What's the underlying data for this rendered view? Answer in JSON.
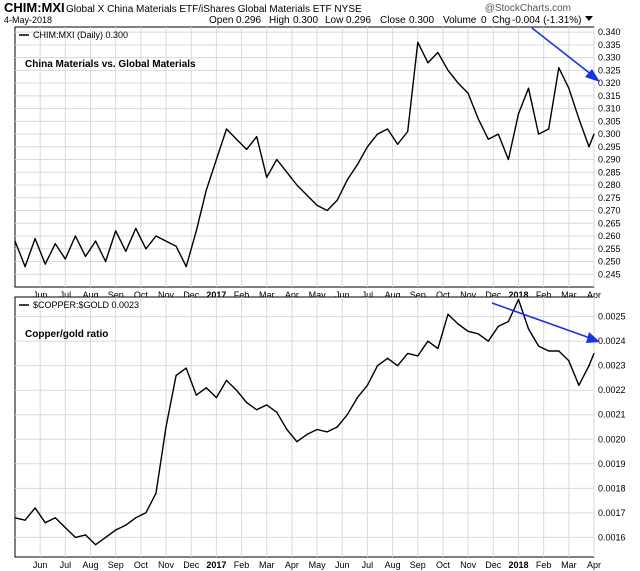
{
  "header": {
    "symbol": "CHIM:MXI",
    "name": "Global X China Materials ETF/iShares Global Materials ETF  NYSE",
    "date": "4-May-2018",
    "open_label": "Open",
    "open": "0.296",
    "high_label": "High",
    "high": "0.300",
    "low_label": "Low",
    "low": "0.296",
    "close_label": "Close",
    "close": "0.300",
    "volume_label": "Volume",
    "volume": "0",
    "chg_label": "Chg",
    "chg": "-0.004 (-1.31%)",
    "brand": "@StockCharts.com"
  },
  "colors": {
    "line": "#000000",
    "arrow": "#1a33e6",
    "grid": "#d9d9d9"
  },
  "chart_data": [
    {
      "type": "line",
      "legend": "CHIM:MXI (Daily) 0.300",
      "annotation": "China Materials vs. Global Materials",
      "ylim": [
        0.24,
        0.342
      ],
      "yticks": [
        0.245,
        0.25,
        0.255,
        0.26,
        0.265,
        0.27,
        0.275,
        0.28,
        0.285,
        0.29,
        0.295,
        0.3,
        0.305,
        0.31,
        0.315,
        0.32,
        0.325,
        0.33,
        0.335,
        0.34
      ],
      "ytick_labels": [
        "0.245",
        "0.250",
        "0.255",
        "0.260",
        "0.265",
        "0.270",
        "0.275",
        "0.280",
        "0.285",
        "0.290",
        "0.295",
        "0.300",
        "0.305",
        "0.310",
        "0.315",
        "0.320",
        "0.325",
        "0.330",
        "0.335",
        "0.340"
      ],
      "xlim": [
        0,
        23
      ],
      "x_ticks": [
        {
          "x": 1.0,
          "label": "Jun"
        },
        {
          "x": 2.0,
          "label": "Jul"
        },
        {
          "x": 3.0,
          "label": "Aug"
        },
        {
          "x": 4.0,
          "label": "Sep"
        },
        {
          "x": 5.0,
          "label": "Oct"
        },
        {
          "x": 6.0,
          "label": "Nov"
        },
        {
          "x": 7.0,
          "label": "Dec"
        },
        {
          "x": 8.0,
          "label": "2017"
        },
        {
          "x": 9.0,
          "label": "Feb"
        },
        {
          "x": 10.0,
          "label": "Mar"
        },
        {
          "x": 11.0,
          "label": "Apr"
        },
        {
          "x": 12.0,
          "label": "May"
        },
        {
          "x": 13.0,
          "label": "Jun"
        },
        {
          "x": 14.0,
          "label": "Jul"
        },
        {
          "x": 15.0,
          "label": "Aug"
        },
        {
          "x": 16.0,
          "label": "Sep"
        },
        {
          "x": 17.0,
          "label": "Oct"
        },
        {
          "x": 18.0,
          "label": "Nov"
        },
        {
          "x": 19.0,
          "label": "Dec"
        },
        {
          "x": 20.0,
          "label": "2018"
        },
        {
          "x": 21.0,
          "label": "Feb"
        },
        {
          "x": 22.0,
          "label": "Mar"
        },
        {
          "x": 23.0,
          "label": "Apr"
        }
      ],
      "x": [
        0,
        0.4,
        0.8,
        1.2,
        1.6,
        2.0,
        2.4,
        2.8,
        3.2,
        3.6,
        4.0,
        4.4,
        4.8,
        5.2,
        5.6,
        6.0,
        6.4,
        6.8,
        7.2,
        7.6,
        8.0,
        8.4,
        8.8,
        9.2,
        9.6,
        10.0,
        10.4,
        10.8,
        11.2,
        11.6,
        12.0,
        12.4,
        12.8,
        13.2,
        13.6,
        14.0,
        14.4,
        14.8,
        15.2,
        15.6,
        16.0,
        16.4,
        16.8,
        17.2,
        17.6,
        18.0,
        18.4,
        18.8,
        19.2,
        19.6,
        20.0,
        20.4,
        20.8,
        21.2,
        21.6,
        22.0,
        22.4,
        22.8,
        23.0
      ],
      "y": [
        0.258,
        0.248,
        0.259,
        0.249,
        0.257,
        0.251,
        0.26,
        0.252,
        0.258,
        0.25,
        0.262,
        0.254,
        0.263,
        0.255,
        0.26,
        0.258,
        0.256,
        0.248,
        0.262,
        0.278,
        0.29,
        0.302,
        0.298,
        0.294,
        0.299,
        0.283,
        0.29,
        0.285,
        0.28,
        0.276,
        0.272,
        0.27,
        0.274,
        0.282,
        0.288,
        0.295,
        0.3,
        0.302,
        0.296,
        0.301,
        0.336,
        0.328,
        0.332,
        0.325,
        0.32,
        0.316,
        0.306,
        0.298,
        0.3,
        0.29,
        0.308,
        0.318,
        0.3,
        0.302,
        0.326,
        0.318,
        0.306,
        0.295,
        0.3
      ]
    },
    {
      "type": "line",
      "legend": "$COPPER:$GOLD 0.0023",
      "annotation": "Copper/gold ratio",
      "ylim": [
        0.00152,
        0.00258
      ],
      "yticks": [
        0.0016,
        0.0017,
        0.0018,
        0.0019,
        0.002,
        0.0021,
        0.0022,
        0.0023,
        0.0024,
        0.0025
      ],
      "ytick_labels": [
        "0.0016",
        "0.0017",
        "0.0018",
        "0.0019",
        "0.0020",
        "0.0021",
        "0.0022",
        "0.0023",
        "0.0024",
        "0.0025"
      ],
      "xlim": [
        0,
        23
      ],
      "x_ticks": [
        {
          "x": 1.0,
          "label": "Jun"
        },
        {
          "x": 2.0,
          "label": "Jul"
        },
        {
          "x": 3.0,
          "label": "Aug"
        },
        {
          "x": 4.0,
          "label": "Sep"
        },
        {
          "x": 5.0,
          "label": "Oct"
        },
        {
          "x": 6.0,
          "label": "Nov"
        },
        {
          "x": 7.0,
          "label": "Dec"
        },
        {
          "x": 8.0,
          "label": "2017"
        },
        {
          "x": 9.0,
          "label": "Feb"
        },
        {
          "x": 10.0,
          "label": "Mar"
        },
        {
          "x": 11.0,
          "label": "Apr"
        },
        {
          "x": 12.0,
          "label": "May"
        },
        {
          "x": 13.0,
          "label": "Jun"
        },
        {
          "x": 14.0,
          "label": "Jul"
        },
        {
          "x": 15.0,
          "label": "Aug"
        },
        {
          "x": 16.0,
          "label": "Sep"
        },
        {
          "x": 17.0,
          "label": "Oct"
        },
        {
          "x": 18.0,
          "label": "Nov"
        },
        {
          "x": 19.0,
          "label": "Dec"
        },
        {
          "x": 20.0,
          "label": "2018"
        },
        {
          "x": 21.0,
          "label": "Feb"
        },
        {
          "x": 22.0,
          "label": "Mar"
        },
        {
          "x": 23.0,
          "label": "Apr"
        }
      ],
      "x": [
        0,
        0.4,
        0.8,
        1.2,
        1.6,
        2.0,
        2.4,
        2.8,
        3.2,
        3.6,
        4.0,
        4.4,
        4.8,
        5.2,
        5.6,
        6.0,
        6.4,
        6.8,
        7.2,
        7.6,
        8.0,
        8.4,
        8.8,
        9.2,
        9.6,
        10.0,
        10.4,
        10.8,
        11.2,
        11.6,
        12.0,
        12.4,
        12.8,
        13.2,
        13.6,
        14.0,
        14.4,
        14.8,
        15.2,
        15.6,
        16.0,
        16.4,
        16.8,
        17.2,
        17.6,
        18.0,
        18.4,
        18.8,
        19.2,
        19.6,
        20.0,
        20.4,
        20.8,
        21.2,
        21.6,
        22.0,
        22.4,
        22.8,
        23.0
      ],
      "y": [
        0.00168,
        0.00167,
        0.00172,
        0.00166,
        0.00168,
        0.00164,
        0.0016,
        0.00161,
        0.00157,
        0.0016,
        0.00163,
        0.00165,
        0.00168,
        0.0017,
        0.00178,
        0.00205,
        0.00226,
        0.00229,
        0.00218,
        0.00221,
        0.00217,
        0.00224,
        0.0022,
        0.00215,
        0.00212,
        0.00214,
        0.00211,
        0.00204,
        0.00199,
        0.00202,
        0.00204,
        0.00203,
        0.00205,
        0.0021,
        0.00217,
        0.00222,
        0.0023,
        0.00233,
        0.0023,
        0.00235,
        0.00234,
        0.0024,
        0.00237,
        0.00251,
        0.00247,
        0.00244,
        0.00243,
        0.0024,
        0.00246,
        0.00248,
        0.00257,
        0.00245,
        0.00238,
        0.00236,
        0.00236,
        0.00232,
        0.00222,
        0.0023,
        0.00235
      ]
    }
  ]
}
